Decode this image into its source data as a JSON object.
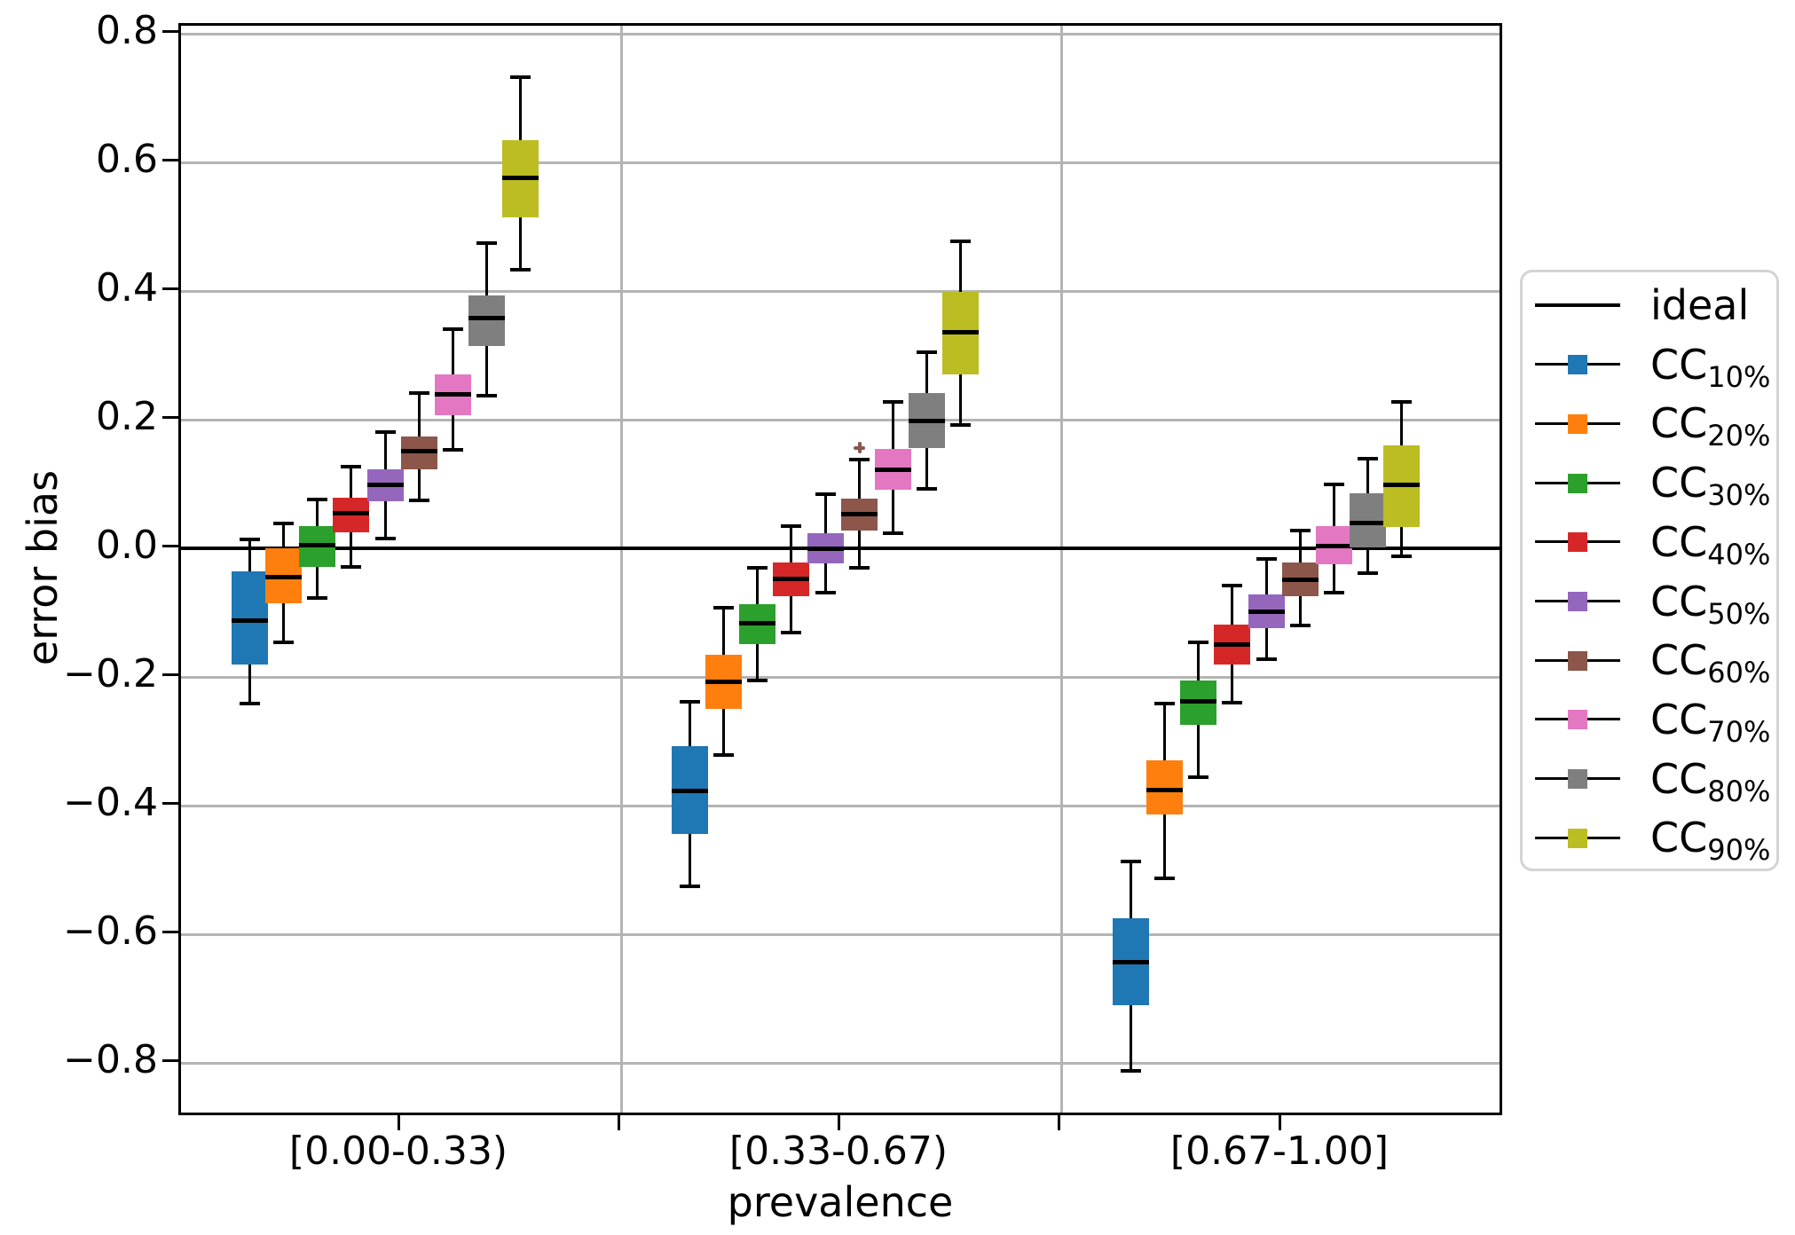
{
  "chart_data": {
    "type": "boxplot-grouped",
    "title": "",
    "xlabel": "prevalence",
    "ylabel": "error bias",
    "ylim": [
      -0.885,
      0.812
    ],
    "grid": true,
    "grid_color": "#b4b4b4",
    "ideal_line_value": 0.0,
    "y_ticks": [
      {
        "v": 0.8,
        "label": "0.8"
      },
      {
        "v": 0.6,
        "label": "0.6"
      },
      {
        "v": 0.4,
        "label": "0.4"
      },
      {
        "v": 0.2,
        "label": "0.2"
      },
      {
        "v": 0.0,
        "label": "0.0"
      },
      {
        "v": -0.2,
        "label": "−0.2"
      },
      {
        "v": -0.4,
        "label": "−0.4"
      },
      {
        "v": -0.6,
        "label": "−0.6"
      },
      {
        "v": -0.8,
        "label": "−0.8"
      }
    ],
    "groups": [
      "[0.00-0.33)",
      "[0.33-0.67)",
      "[0.67-1.00]"
    ],
    "series": [
      {
        "name": "CC_10%",
        "color": "#1f77b4",
        "stats": [
          {
            "whislo": -0.241,
            "q1": -0.181,
            "med": -0.112,
            "q3": -0.036,
            "whishi": 0.014
          },
          {
            "whislo": -0.526,
            "q1": -0.444,
            "med": -0.377,
            "q3": -0.307,
            "whishi": -0.238
          },
          {
            "whislo": -0.812,
            "q1": -0.71,
            "med": -0.644,
            "q3": -0.575,
            "whishi": -0.487
          }
        ]
      },
      {
        "name": "CC_20%",
        "color": "#ff7f0e",
        "stats": [
          {
            "whislo": -0.146,
            "q1": -0.086,
            "med": -0.045,
            "q3": 0.0,
            "whishi": 0.039
          },
          {
            "whislo": -0.322,
            "q1": -0.25,
            "med": -0.207,
            "q3": -0.166,
            "whishi": -0.093
          },
          {
            "whislo": -0.513,
            "q1": -0.414,
            "med": -0.376,
            "q3": -0.33,
            "whishi": -0.242
          }
        ]
      },
      {
        "name": "CC_30%",
        "color": "#2ca02c",
        "stats": [
          {
            "whislo": -0.077,
            "q1": -0.029,
            "med": 0.005,
            "q3": 0.035,
            "whishi": 0.076
          },
          {
            "whislo": -0.205,
            "q1": -0.149,
            "med": -0.117,
            "q3": -0.087,
            "whishi": -0.03
          },
          {
            "whislo": -0.356,
            "q1": -0.274,
            "med": -0.238,
            "q3": -0.206,
            "whishi": -0.146
          }
        ]
      },
      {
        "name": "CC_40%",
        "color": "#d62728",
        "stats": [
          {
            "whislo": -0.029,
            "q1": 0.025,
            "med": 0.055,
            "q3": 0.078,
            "whishi": 0.127
          },
          {
            "whislo": -0.131,
            "q1": -0.074,
            "med": -0.047,
            "q3": -0.022,
            "whishi": 0.035
          },
          {
            "whislo": -0.24,
            "q1": -0.181,
            "med": -0.149,
            "q3": -0.118,
            "whishi": -0.058
          }
        ]
      },
      {
        "name": "CC_50%",
        "color": "#9467bd",
        "stats": [
          {
            "whislo": 0.015,
            "q1": 0.073,
            "med": 0.099,
            "q3": 0.123,
            "whishi": 0.181
          },
          {
            "whislo": -0.069,
            "q1": -0.024,
            "med": 0.0,
            "q3": 0.024,
            "whishi": 0.084
          },
          {
            "whislo": -0.172,
            "q1": -0.124,
            "med": -0.098,
            "q3": -0.072,
            "whishi": -0.017
          }
        ]
      },
      {
        "name": "CC_60%",
        "color": "#8c564b",
        "stats": [
          {
            "whislo": 0.074,
            "q1": 0.123,
            "med": 0.151,
            "q3": 0.174,
            "whishi": 0.241
          },
          {
            "whislo": -0.03,
            "q1": 0.028,
            "med": 0.053,
            "q3": 0.077,
            "whishi": 0.138
          },
          {
            "whislo": -0.12,
            "q1": -0.075,
            "med": -0.049,
            "q3": -0.022,
            "whishi": 0.028
          }
        ]
      },
      {
        "name": "CC_70%",
        "color": "#e377c2",
        "stats": [
          {
            "whislo": 0.153,
            "q1": 0.207,
            "med": 0.239,
            "q3": 0.27,
            "whishi": 0.341
          },
          {
            "whislo": 0.023,
            "q1": 0.091,
            "med": 0.122,
            "q3": 0.155,
            "whishi": 0.227
          },
          {
            "whislo": -0.069,
            "q1": -0.025,
            "med": 0.003,
            "q3": 0.035,
            "whishi": 0.099
          }
        ]
      },
      {
        "name": "CC_80%",
        "color": "#7f7f7f",
        "stats": [
          {
            "whislo": 0.237,
            "q1": 0.315,
            "med": 0.358,
            "q3": 0.393,
            "whishi": 0.475
          },
          {
            "whislo": 0.092,
            "q1": 0.156,
            "med": 0.198,
            "q3": 0.241,
            "whishi": 0.305
          },
          {
            "whislo": -0.039,
            "q1": 0.002,
            "med": 0.039,
            "q3": 0.085,
            "whishi": 0.139
          }
        ]
      },
      {
        "name": "CC_90%",
        "color": "#bcbd22",
        "stats": [
          {
            "whislo": 0.433,
            "q1": 0.514,
            "med": 0.576,
            "q3": 0.634,
            "whishi": 0.733
          },
          {
            "whislo": 0.192,
            "q1": 0.271,
            "med": 0.336,
            "q3": 0.398,
            "whishi": 0.477
          },
          {
            "whislo": -0.013,
            "q1": 0.033,
            "med": 0.098,
            "q3": 0.16,
            "whishi": 0.227
          }
        ]
      }
    ],
    "fliers": [
      {
        "series": "CC_60%",
        "group_index": 1,
        "value": 0.157,
        "color": "#8c564b"
      }
    ],
    "legend": {
      "entries": [
        {
          "kind": "line",
          "label": "ideal",
          "color": "#000000"
        },
        {
          "kind": "box",
          "label": "CC",
          "sub": "10%",
          "color": "#1f77b4"
        },
        {
          "kind": "box",
          "label": "CC",
          "sub": "20%",
          "color": "#ff7f0e"
        },
        {
          "kind": "box",
          "label": "CC",
          "sub": "30%",
          "color": "#2ca02c"
        },
        {
          "kind": "box",
          "label": "CC",
          "sub": "40%",
          "color": "#d62728"
        },
        {
          "kind": "box",
          "label": "CC",
          "sub": "50%",
          "color": "#9467bd"
        },
        {
          "kind": "box",
          "label": "CC",
          "sub": "60%",
          "color": "#8c564b"
        },
        {
          "kind": "box",
          "label": "CC",
          "sub": "70%",
          "color": "#e377c2"
        },
        {
          "kind": "box",
          "label": "CC",
          "sub": "80%",
          "color": "#7f7f7f"
        },
        {
          "kind": "box",
          "label": "CC",
          "sub": "90%",
          "color": "#bcbd22"
        }
      ]
    }
  }
}
